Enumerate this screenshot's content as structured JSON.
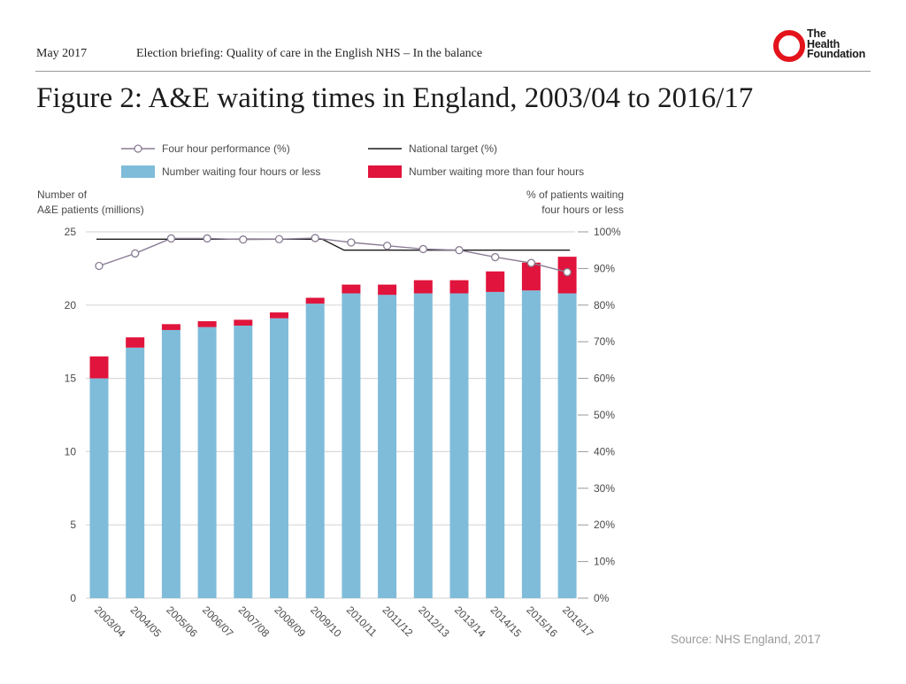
{
  "header": {
    "date": "May 2017",
    "briefing": "Election briefing: Quality of care in the English NHS – In the balance",
    "logo": {
      "line1": "The",
      "line2": "Health",
      "line3": "Foundation"
    }
  },
  "figure_title": "Figure 2: A&E waiting times in England, 2003/04 to 2016/17",
  "source": "Source: NHS England, 2017",
  "colors": {
    "bar_within": "#7fbcda",
    "bar_over": "#e0143c",
    "performance_line": "#8a7d94",
    "target_line": "#1a1a1a",
    "grid": "#d9d9d9",
    "text": "#4a4a4a"
  },
  "chart_data": {
    "type": "bar",
    "title": "Figure 2: A&E waiting times in England, 2003/04 to 2016/17",
    "categories": [
      "2003/04",
      "2004/05",
      "2005/06",
      "2006/07",
      "2007/08",
      "2008/09",
      "2009/10",
      "2010/11",
      "2011/12",
      "2012/13",
      "2013/14",
      "2014/15",
      "2015/16",
      "2016/17"
    ],
    "series": [
      {
        "name": "Number waiting four hours or less",
        "values": [
          15.0,
          17.1,
          18.3,
          18.5,
          18.6,
          19.1,
          20.1,
          20.8,
          20.7,
          20.8,
          20.8,
          20.9,
          21.0,
          20.8
        ]
      },
      {
        "name": "Number waiting more than four hours",
        "values": [
          1.5,
          0.7,
          0.4,
          0.4,
          0.4,
          0.4,
          0.4,
          0.6,
          0.7,
          0.9,
          0.9,
          1.4,
          1.9,
          2.5
        ]
      }
    ],
    "line_series": [
      {
        "name": "Four hour performance (%)",
        "axis": "right",
        "values": [
          90.7,
          94.1,
          98.2,
          98.2,
          97.9,
          98.0,
          98.3,
          97.1,
          96.2,
          95.3,
          95.0,
          93.1,
          91.5,
          89.0
        ]
      },
      {
        "name": "National target (%)",
        "axis": "right",
        "values": [
          98,
          98,
          98,
          98,
          98,
          98,
          98,
          95,
          95,
          95,
          95,
          95,
          95,
          95
        ]
      }
    ],
    "legend": [
      {
        "label": "Four hour performance (%)",
        "kind": "line-marker"
      },
      {
        "label": "National target (%)",
        "kind": "line"
      },
      {
        "label": "Number waiting four hours or less",
        "kind": "swatch-within"
      },
      {
        "label": "Number waiting more than four hours",
        "kind": "swatch-over"
      }
    ],
    "ylabel_left": [
      "Number of",
      "A&E patients (millions)"
    ],
    "ylabel_right": [
      "% of patients waiting",
      "four hours or less"
    ],
    "ylim_left": [
      0,
      25
    ],
    "ylim_right": [
      0,
      100
    ],
    "left_ticks": [
      "0",
      "5",
      "10",
      "15",
      "20",
      "25"
    ],
    "right_ticks": [
      "0%",
      "10%",
      "20%",
      "30%",
      "40%",
      "50%",
      "60%",
      "70%",
      "80%",
      "90%",
      "100%"
    ]
  }
}
